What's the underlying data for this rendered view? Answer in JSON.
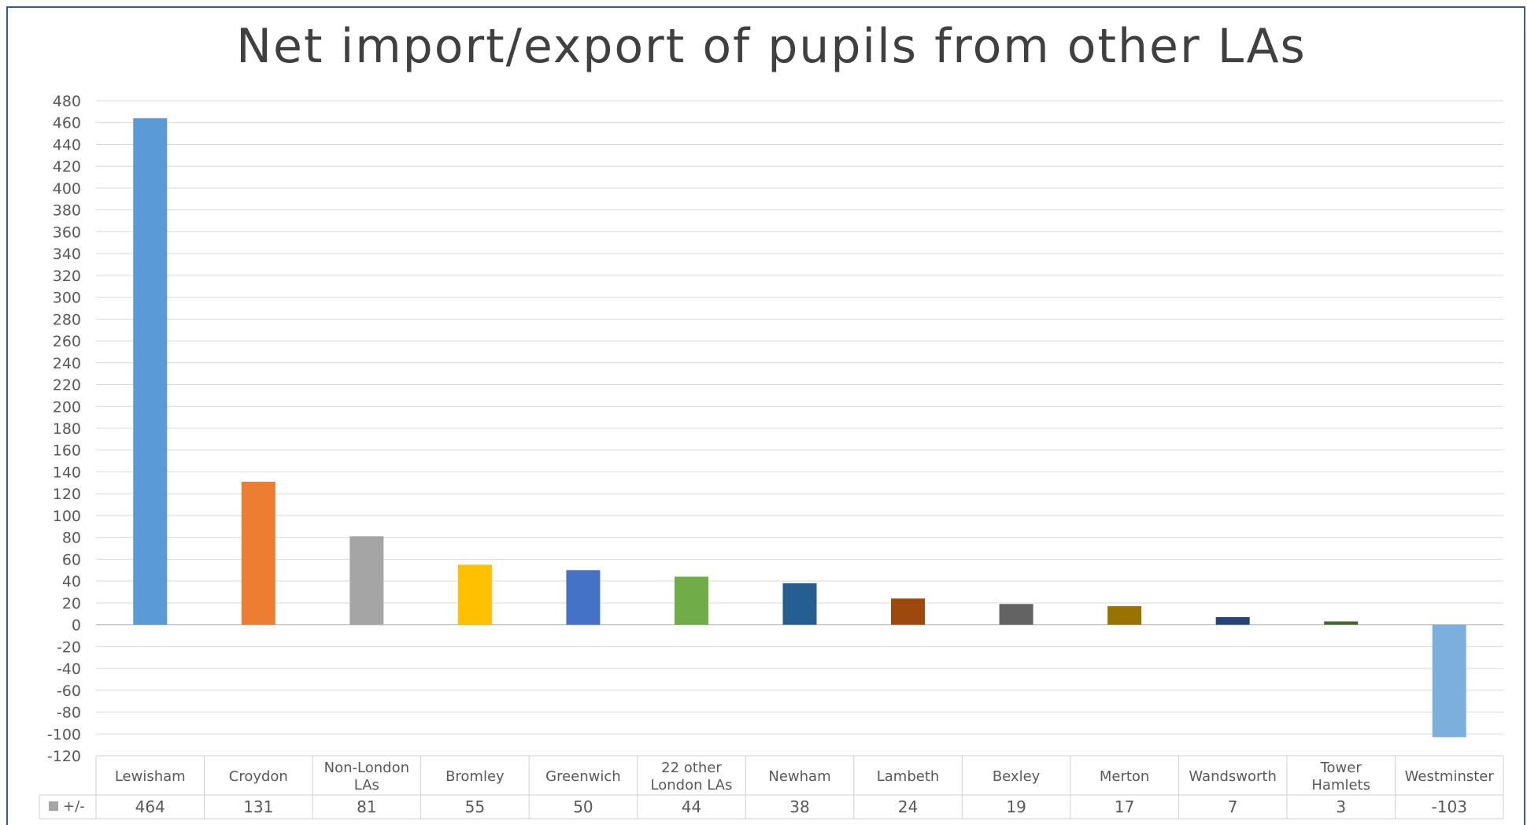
{
  "chart_data": {
    "type": "bar",
    "title": "Net import/export of pupils from other LAs",
    "categories": [
      "Lewisham",
      "Croydon",
      "Non-London LAs",
      "Bromley",
      "Greenwich",
      "22 other London LAs",
      "Newham",
      "Lambeth",
      "Bexley",
      "Merton",
      "Wandsworth",
      "Tower Hamlets",
      "Westminster"
    ],
    "category_lines": [
      [
        "Lewisham"
      ],
      [
        "Croydon"
      ],
      [
        "Non-London",
        "LAs"
      ],
      [
        "Bromley"
      ],
      [
        "Greenwich"
      ],
      [
        "22 other",
        "London LAs"
      ],
      [
        "Newham"
      ],
      [
        "Lambeth"
      ],
      [
        "Bexley"
      ],
      [
        "Merton"
      ],
      [
        "Wandsworth"
      ],
      [
        "Tower",
        "Hamlets"
      ],
      [
        "Westminster"
      ]
    ],
    "series": [
      {
        "name": "+/-",
        "values": [
          464,
          131,
          81,
          55,
          50,
          44,
          38,
          24,
          19,
          17,
          7,
          3,
          -103
        ]
      }
    ],
    "colors": [
      "#5B9BD5",
      "#ED7D31",
      "#A5A5A5",
      "#FFC000",
      "#4472C4",
      "#70AD47",
      "#255E91",
      "#9E480E",
      "#636363",
      "#997300",
      "#264478",
      "#43682B",
      "#7CAFDD"
    ],
    "ylim": [
      -120,
      480
    ],
    "ytick_step": 20,
    "grid": true,
    "data_table": true,
    "legend_placement": "data-table-left"
  }
}
